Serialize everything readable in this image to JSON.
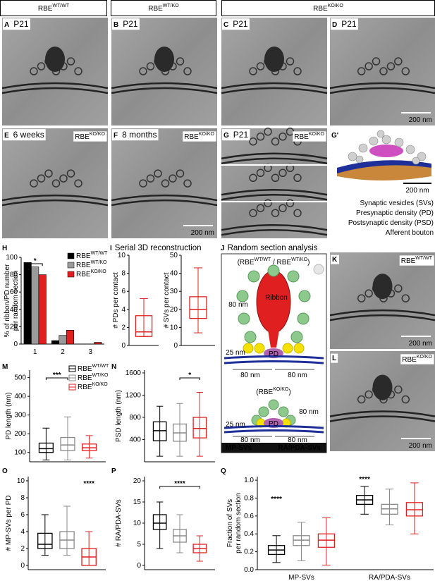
{
  "headers": [
    {
      "name": "RBE",
      "sup": "WT/WT"
    },
    {
      "name": "RBE",
      "sup": "WT/KO"
    },
    {
      "name": "RBE",
      "sup": "KO/KO"
    }
  ],
  "panels": [
    {
      "label": "A",
      "text": "P21"
    },
    {
      "label": "B",
      "text": "P21"
    },
    {
      "label": "C",
      "text": "P21"
    },
    {
      "label": "D",
      "text": "P21",
      "scale": "200 nm"
    },
    {
      "label": "E",
      "text": "6 weeks",
      "genotype": {
        "name": "RBE",
        "sup": "KO/KO"
      }
    },
    {
      "label": "F",
      "text": "8 months",
      "genotype": {
        "name": "RBE",
        "sup": "KO/KO"
      },
      "scale": "200 nm"
    },
    {
      "label": "G",
      "text": "P21",
      "genotype": {
        "name": "RBE",
        "sup": "KO/KO"
      }
    },
    {
      "label": "G'",
      "scale": "200 nm",
      "legend": [
        {
          "text": "Synaptic vesicles (SVs)",
          "color": "#8c8c8c"
        },
        {
          "text": "Presynaptic density (PD)",
          "color": "#d04fc0"
        },
        {
          "text": "Postsynaptic density (PSD)",
          "color": "#1f2f9a"
        },
        {
          "text": "Afferent bouton",
          "color": "#c8873a"
        }
      ]
    },
    {
      "label": "H"
    },
    {
      "label": "I",
      "text": "Serial 3D reconstruction"
    },
    {
      "label": "J",
      "text": "Random section analysis"
    },
    {
      "label": "K",
      "genotype": {
        "name": "RBE",
        "sup": "WT/WT"
      },
      "scale": "200 nm"
    },
    {
      "label": "L",
      "genotype": {
        "name": "RBE",
        "sup": "KO/KO"
      },
      "scale": "200 nm"
    },
    {
      "label": "M"
    },
    {
      "label": "N"
    },
    {
      "label": "O"
    },
    {
      "label": "P"
    },
    {
      "label": "Q"
    }
  ],
  "diagram": {
    "top_group": [
      "(",
      {
        "name": "RBE",
        "sup": "WT/WT"
      },
      " / ",
      {
        "name": "RBE",
        "sup": "WT/KO"
      },
      ")"
    ],
    "top_texts": [
      "80 nm",
      "Ribbon",
      "25 nm",
      "PD",
      "80 nm",
      "80 nm"
    ],
    "bottom_group": [
      "(",
      {
        "name": "RBE",
        "sup": "KO/KO"
      },
      ")"
    ],
    "bottom_texts": [
      "80 nm",
      "25 nm",
      "PD",
      "80 nm",
      "80 nm"
    ],
    "legend": [
      {
        "text": "MP-SVs",
        "color": "#f5e100"
      },
      {
        "text": "RA/PDA-SVs",
        "color": "#4fc24f"
      }
    ]
  },
  "chart_data": [
    {
      "type": "bar",
      "ylabel": [
        "% of ribbon/PD number",
        "per random section"
      ],
      "categories": [
        "1",
        "2",
        "3"
      ],
      "series": [
        {
          "name": "RBE",
          "sup": "WT/WT",
          "color": "#000000",
          "values": [
            94,
            4,
            0
          ]
        },
        {
          "name": "RBE",
          "sup": "WT/KO",
          "color": "#9a9a9a",
          "values": [
            89,
            10,
            0
          ]
        },
        {
          "name": "RBE",
          "sup": "KO/KO",
          "color": "#e02020",
          "values": [
            80,
            16,
            2
          ]
        }
      ],
      "ylim": [
        0,
        100
      ],
      "yticks": [
        0,
        20,
        40,
        60,
        80,
        100
      ],
      "legend": "upper right",
      "annotations": [
        "*"
      ]
    },
    {
      "type": "box",
      "ylabel": "# PDs per contact",
      "series": [
        {
          "color": "#e02020",
          "boxes": [
            {
              "min": 1,
              "q1": 1,
              "median": 1.5,
              "q3": 3.3,
              "max": 5.2
            }
          ]
        }
      ],
      "ylim": [
        0,
        10
      ],
      "yticks": [
        0,
        2,
        4,
        6,
        8,
        10
      ]
    },
    {
      "type": "box",
      "ylabel": "# SVs per contact",
      "series": [
        {
          "color": "#e02020",
          "boxes": [
            {
              "min": 7,
              "q1": 15,
              "median": 20,
              "q3": 27,
              "max": 43
            }
          ]
        }
      ],
      "ylim": [
        0,
        50
      ],
      "yticks": [
        0,
        10,
        20,
        30,
        40,
        50
      ]
    },
    {
      "type": "box",
      "ylabel": "PD length (nm)",
      "series": [
        {
          "name": "RBE",
          "sup": "WT/WT",
          "color": "#000000",
          "boxes": [
            {
              "min": 60,
              "q1": 100,
              "median": 120,
              "q3": 150,
              "max": 230
            }
          ]
        },
        {
          "name": "RBE",
          "sup": "WT/KO",
          "color": "#8a8a8a",
          "boxes": [
            {
              "min": 60,
              "q1": 110,
              "median": 140,
              "q3": 180,
              "max": 290
            }
          ]
        },
        {
          "name": "RBE",
          "sup": "KO/KO",
          "color": "#e02020",
          "boxes": [
            {
              "min": 70,
              "q1": 110,
              "median": 125,
              "q3": 145,
              "max": 190
            }
          ]
        }
      ],
      "ylim": [
        50,
        540
      ],
      "yticks": [
        100,
        200,
        300,
        400,
        500
      ],
      "legend": "upper right",
      "annotations": [
        "***"
      ]
    },
    {
      "type": "box",
      "ylabel": "PSD length (nm)",
      "series": [
        {
          "color": "#000000",
          "boxes": [
            {
              "min": 100,
              "q1": 380,
              "median": 560,
              "q3": 720,
              "max": 1000
            }
          ]
        },
        {
          "color": "#8a8a8a",
          "boxes": [
            {
              "min": 100,
              "q1": 370,
              "median": 520,
              "q3": 680,
              "max": 1050
            }
          ]
        },
        {
          "color": "#e02020",
          "boxes": [
            {
              "min": 100,
              "q1": 430,
              "median": 600,
              "q3": 800,
              "max": 1250
            }
          ]
        }
      ],
      "ylim": [
        0,
        1650
      ],
      "yticks": [
        400,
        800,
        1200,
        1600
      ],
      "annotations": [
        "*"
      ]
    },
    {
      "type": "box",
      "ylabel": "# MP-SVs per PD",
      "series": [
        {
          "color": "#000000",
          "boxes": [
            {
              "min": 1.2,
              "q1": 2,
              "median": 2.5,
              "q3": 3.8,
              "max": 6
            }
          ]
        },
        {
          "color": "#8a8a8a",
          "boxes": [
            {
              "min": 1.2,
              "q1": 2,
              "median": 3,
              "q3": 4,
              "max": 7
            }
          ]
        },
        {
          "color": "#e02020",
          "boxes": [
            {
              "min": 0,
              "q1": 0,
              "median": 1,
              "q3": 2,
              "max": 4
            }
          ]
        }
      ],
      "ylim": [
        -0.5,
        10.5
      ],
      "yticks": [
        0,
        2,
        4,
        6,
        8,
        10
      ],
      "annotations": [
        "****"
      ]
    },
    {
      "type": "box",
      "ylabel": "# RA/PDA-SVs",
      "series": [
        {
          "color": "#000000",
          "boxes": [
            {
              "min": 4,
              "q1": 8.5,
              "median": 10,
              "q3": 12,
              "max": 15
            }
          ]
        },
        {
          "color": "#8a8a8a",
          "boxes": [
            {
              "min": 3,
              "q1": 5.5,
              "median": 7,
              "q3": 8.5,
              "max": 12
            }
          ]
        },
        {
          "color": "#e02020",
          "boxes": [
            {
              "min": 1,
              "q1": 3,
              "median": 4,
              "q3": 5,
              "max": 7
            }
          ]
        }
      ],
      "ylim": [
        -1,
        21
      ],
      "yticks": [
        0,
        5,
        10,
        15,
        20
      ],
      "annotations": [
        "****"
      ]
    },
    {
      "type": "box",
      "ylabel": [
        "Fraction of SVs",
        "per random section"
      ],
      "categories": [
        "MP-SVs",
        "RA/PDA-SVs"
      ],
      "series": [
        {
          "color": "#000000",
          "boxes": [
            {
              "min": 0.08,
              "q1": 0.17,
              "median": 0.22,
              "q3": 0.27,
              "max": 0.38
            },
            {
              "min": 0.62,
              "q1": 0.73,
              "median": 0.78,
              "q3": 0.83,
              "max": 0.93
            }
          ]
        },
        {
          "color": "#8a8a8a",
          "boxes": [
            {
              "min": 0.1,
              "q1": 0.27,
              "median": 0.33,
              "q3": 0.38,
              "max": 0.53
            },
            {
              "min": 0.5,
              "q1": 0.62,
              "median": 0.68,
              "q3": 0.73,
              "max": 0.9
            }
          ]
        },
        {
          "color": "#e02020",
          "boxes": [
            {
              "min": 0.05,
              "q1": 0.25,
              "median": 0.33,
              "q3": 0.4,
              "max": 0.58
            },
            {
              "min": 0.4,
              "q1": 0.6,
              "median": 0.67,
              "q3": 0.75,
              "max": 0.97
            }
          ]
        }
      ],
      "ylim": [
        0,
        1.04
      ],
      "yticks": [
        {
          "value": 0,
          "label": "0.0"
        },
        0.2,
        0.4,
        0.6,
        0.8,
        {
          "value": 1,
          "label": "1.0"
        }
      ],
      "annotations": [
        "****",
        "****"
      ]
    }
  ]
}
